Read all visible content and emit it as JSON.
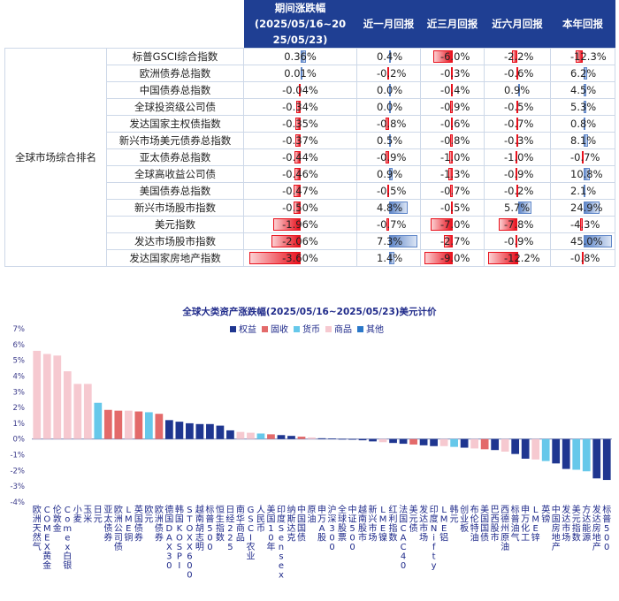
{
  "table": {
    "headers": [
      "期间涨跌幅(2025/05/16~2025/05/23)",
      "近一月回报",
      "近三月回报",
      "近六月回报",
      "本年回报"
    ],
    "header_lines": [
      "期间涨跌幅",
      "(2025/05/16~20",
      "25/05/23)"
    ],
    "group_label": "全球市场综合排名",
    "rows": [
      {
        "name": "标普GSCI综合指数",
        "values": [
          "0.36%",
          "0.4%",
          "-6.0%",
          "-2.2%",
          "-12.3%"
        ]
      },
      {
        "name": "欧洲债券总指数",
        "values": [
          "0.01%",
          "-0.2%",
          "-0.3%",
          "-0.6%",
          "6.2%"
        ]
      },
      {
        "name": "中国债券总指数",
        "values": [
          "-0.04%",
          "0.0%",
          "-0.4%",
          "0.9%",
          "4.5%"
        ]
      },
      {
        "name": "全球投资级公司债",
        "values": [
          "-0.34%",
          "0.0%",
          "-0.9%",
          "-0.5%",
          "5.3%"
        ]
      },
      {
        "name": "发达国家主权债指数",
        "values": [
          "-0.35%",
          "-0.8%",
          "-0.6%",
          "-0.7%",
          "0.8%"
        ]
      },
      {
        "name": "新兴市场美元债券总指数",
        "values": [
          "-0.37%",
          "0.5%",
          "-0.8%",
          "-0.3%",
          "8.1%"
        ]
      },
      {
        "name": "亚太债券总指数",
        "values": [
          "-0.44%",
          "-0.9%",
          "-1.0%",
          "-1.0%",
          "-0.7%"
        ]
      },
      {
        "name": "全球高收益公司债",
        "values": [
          "-0.46%",
          "0.9%",
          "-1.3%",
          "-0.9%",
          "10.8%"
        ]
      },
      {
        "name": "美国债券总指数",
        "values": [
          "-0.47%",
          "-0.5%",
          "-0.7%",
          "-0.2%",
          "2.1%"
        ]
      },
      {
        "name": "新兴市场股市指数",
        "values": [
          "-0.50%",
          "4.8%",
          "-0.5%",
          "5.7%",
          "24.9%"
        ]
      },
      {
        "name": "美元指数",
        "values": [
          "-1.96%",
          "-0.7%",
          "-7.0%",
          "-7.8%",
          "-4.3%"
        ]
      },
      {
        "name": "发达市场股市指数",
        "values": [
          "-2.06%",
          "7.3%",
          "-2.7%",
          "-0.9%",
          "45.0%"
        ]
      },
      {
        "name": "发达国家房地产指数",
        "values": [
          "-3.60%",
          "1.4%",
          "-9.0%",
          "-12.2%",
          "-0.8%"
        ]
      }
    ]
  },
  "chart_data": {
    "type": "bar",
    "title": "全球大类资产涨跌幅(2025/05/16~2025/05/23)美元计价",
    "ylim": [
      -4,
      7
    ],
    "yticks": [
      "-4%",
      "-3%",
      "-2%",
      "-1%",
      "0%",
      "1%",
      "2%",
      "3%",
      "4%",
      "5%",
      "6%",
      "7%"
    ],
    "legend_position": "top-center",
    "series": [
      {
        "name": "权益",
        "color": "#1f3690"
      },
      {
        "name": "固收",
        "color": "#e36a6a"
      },
      {
        "name": "货币",
        "color": "#66c8ea"
      },
      {
        "name": "商品",
        "color": "#f6c9d0"
      },
      {
        "name": "其他",
        "color": "#2a78c9"
      }
    ],
    "categories": [
      "欧洲天然气",
      "COMEX黄金",
      "伦敦金",
      "Comex白银",
      "小麦",
      "玉米",
      "日元",
      "亚太债券",
      "欧洲公司债",
      "LME铜",
      "英国债券",
      "欧元",
      "欧洲债券",
      "德国DAX30",
      "韩国KOSPI",
      "STOXX600",
      "越南胡志明",
      "标普500",
      "恒生指数",
      "日经225",
      "南华商品",
      "GSCI农业",
      "人民币",
      "美国10年",
      "印度Sensex",
      "纳斯达克",
      "中国国债",
      "原油",
      "申万A股",
      "沪深300",
      "全球股票",
      "中证500",
      "越南股市",
      "新兴市场",
      "LME镍",
      "红利指数",
      "法国CAC40",
      "美元债",
      "发达市场",
      "印度Nifty",
      "LME铝",
      "韩元",
      "创业板",
      "布伦特油",
      "美国国债",
      "巴西股市",
      "西德州原油",
      "标普油气",
      "申万化工",
      "LME锌",
      "英镑",
      "中国房地产",
      "发达市场",
      "美元指数",
      "方达能源",
      "发达房地产",
      "标普500"
    ],
    "values": [
      5.6,
      5.4,
      5.3,
      4.3,
      3.5,
      3.5,
      2.3,
      1.85,
      1.8,
      1.8,
      1.75,
      1.7,
      1.6,
      1.2,
      1.1,
      1.0,
      0.95,
      0.95,
      0.85,
      0.55,
      0.45,
      0.4,
      0.35,
      0.3,
      0.25,
      0.2,
      0.15,
      0.1,
      0.05,
      0.03,
      0.01,
      0.0,
      -0.08,
      -0.15,
      -0.2,
      -0.25,
      -0.3,
      -0.35,
      -0.4,
      -0.45,
      -0.45,
      -0.5,
      -0.55,
      -0.6,
      -0.65,
      -0.7,
      -0.8,
      -0.95,
      -1.25,
      -1.3,
      -1.4,
      -1.55,
      -1.9,
      -1.95,
      -2.05,
      -2.5,
      -2.6
    ],
    "classes": [
      "商品",
      "商品",
      "商品",
      "商品",
      "商品",
      "商品",
      "货币",
      "固收",
      "固收",
      "商品",
      "固收",
      "货币",
      "固收",
      "权益",
      "权益",
      "权益",
      "权益",
      "权益",
      "权益",
      "权益",
      "商品",
      "商品",
      "货币",
      "固收",
      "权益",
      "权益",
      "固收",
      "商品",
      "权益",
      "权益",
      "权益",
      "权益",
      "权益",
      "权益",
      "商品",
      "权益",
      "权益",
      "固收",
      "权益",
      "权益",
      "商品",
      "货币",
      "权益",
      "商品",
      "固收",
      "权益",
      "商品",
      "权益",
      "权益",
      "商品",
      "货币",
      "权益",
      "权益",
      "货币",
      "货币",
      "权益",
      "权益"
    ],
    "xlabels": [
      "欧洲天然气",
      "COMEX黄金",
      "伦敦金",
      "Comex白银",
      "小麦",
      "玉米",
      "日元",
      "亚太债券",
      "欧洲公司债",
      "LME铜",
      "英国债券",
      "欧元",
      "欧洲债券",
      "德国DAX30",
      "韩国KOSPI",
      "STOXX600",
      "越南胡志明",
      "标普500",
      "恒生指数",
      "日经225",
      "南华商品",
      "GSCI农业",
      "人民币",
      "美国10年",
      "印度Sensex",
      "纳斯达克",
      "中国国债",
      "原油",
      "申万A股",
      "沪深300",
      "全球股票",
      "中证500",
      "越南股市",
      "新兴市场",
      "LME镍",
      "红利指数",
      "法国CAC40",
      "美元债",
      "发达市场",
      "印度Nifty",
      "LME铝",
      "韩元",
      "创业板",
      "布伦特油",
      "美国国债",
      "巴西股市",
      "西德州原油",
      "标普油气",
      "申万化工",
      "LME锌",
      "英镑",
      "中国房地产",
      "发达市场",
      "美元指数",
      "方达能源",
      "发达房地产",
      "标普500"
    ]
  },
  "colors": {
    "header_bg": "#1f3f93",
    "neg_bar": "#e8101c",
    "pos_bar": "#5f86c8"
  }
}
